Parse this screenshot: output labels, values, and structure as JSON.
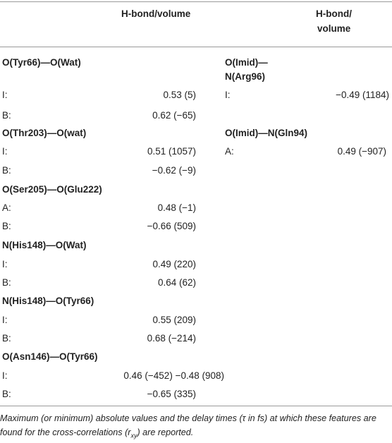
{
  "header": {
    "col1": "H-bond/volume",
    "col2_line1": "H-bond/",
    "col2_line2": "volume"
  },
  "left": [
    {
      "title": "O(Tyr66)—O(Wat)",
      "rows": [
        {
          "label": "I:",
          "value": "0.53 (5)"
        },
        {
          "label": "B:",
          "value": "0.62 (−65)"
        }
      ]
    },
    {
      "title": "O(Thr203)—O(wat)",
      "rows": [
        {
          "label": "I:",
          "value": "0.51 (1057)"
        },
        {
          "label": "B:",
          "value": "−0.62 (−9)"
        }
      ]
    },
    {
      "title": "O(Ser205)—O(Glu222)",
      "rows": [
        {
          "label": "A:",
          "value": "0.48 (−1)"
        },
        {
          "label": "B:",
          "value": "−0.66 (509)"
        }
      ]
    },
    {
      "title": "N(His148)—O(Wat)",
      "rows": [
        {
          "label": "I:",
          "value": "0.49 (220)"
        },
        {
          "label": "B:",
          "value": "0.64 (62)"
        }
      ]
    },
    {
      "title": "N(His148)—O(Tyr66)",
      "rows": [
        {
          "label": "I:",
          "value": "0.55 (209)"
        },
        {
          "label": "B:",
          "value": "0.68 (−214)"
        }
      ]
    },
    {
      "title": "O(Asn146)—O(Tyr66)",
      "rows": [
        {
          "label": "I:",
          "value": "0.46 (−452) −0.48 (908)"
        },
        {
          "label": "B:",
          "value": "−0.65 (335)"
        }
      ]
    }
  ],
  "right": [
    {
      "title_line1": "O(Imid)—",
      "title_line2": "N(Arg96)",
      "rows": [
        {
          "label": "I:",
          "value": "−0.49 (1184)"
        }
      ]
    },
    {
      "title_line1": "O(Imid)—N(Gln94)",
      "rows": [
        {
          "label": "A:",
          "value": "0.49 (−907)"
        }
      ]
    }
  ],
  "footnote": {
    "part1": "Maximum (or minimum) absolute values and the delay times (τ in fs) at which these features are found for the cross-correlations (r",
    "sub": "xy",
    "part2": ") are reported."
  }
}
